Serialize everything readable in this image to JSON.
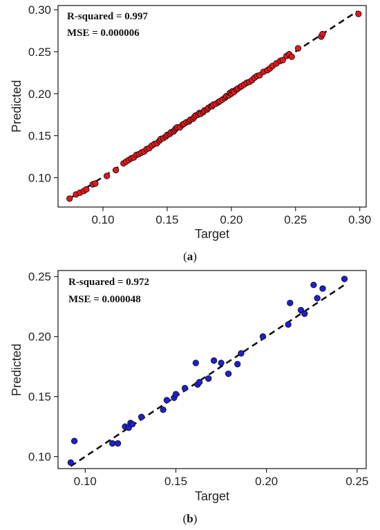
{
  "chart_data": [
    {
      "type": "scatter",
      "caption_open": "(",
      "caption_letter": "a",
      "caption_close": ")",
      "annotations": [
        "R-squared = 0.997",
        "MSE = 0.000006"
      ],
      "xlabel": "Target",
      "ylabel": "Predicted",
      "xlim": [
        0.065,
        0.305
      ],
      "ylim": [
        0.065,
        0.305
      ],
      "xticks": [
        "0.10",
        "0.15",
        "0.20",
        "0.25",
        "0.30"
      ],
      "xtick_values": [
        0.1,
        0.15,
        0.2,
        0.25,
        0.3
      ],
      "yticks": [
        "0.10",
        "0.15",
        "0.20",
        "0.25",
        "0.30"
      ],
      "ytick_values": [
        0.1,
        0.15,
        0.2,
        0.25,
        0.3
      ],
      "fit_line": [
        [
          0.074,
          0.075
        ],
        [
          0.298,
          0.298
        ]
      ],
      "marker_color": "#e8161b",
      "points": [
        [
          0.074,
          0.075
        ],
        [
          0.079,
          0.08
        ],
        [
          0.082,
          0.082
        ],
        [
          0.085,
          0.084
        ],
        [
          0.087,
          0.086
        ],
        [
          0.092,
          0.092
        ],
        [
          0.094,
          0.093
        ],
        [
          0.103,
          0.102
        ],
        [
          0.11,
          0.109
        ],
        [
          0.116,
          0.117
        ],
        [
          0.118,
          0.119
        ],
        [
          0.12,
          0.121
        ],
        [
          0.122,
          0.123
        ],
        [
          0.124,
          0.124
        ],
        [
          0.126,
          0.127
        ],
        [
          0.128,
          0.128
        ],
        [
          0.13,
          0.13
        ],
        [
          0.132,
          0.131
        ],
        [
          0.134,
          0.134
        ],
        [
          0.136,
          0.135
        ],
        [
          0.138,
          0.138
        ],
        [
          0.14,
          0.14
        ],
        [
          0.142,
          0.141
        ],
        [
          0.144,
          0.144
        ],
        [
          0.145,
          0.146
        ],
        [
          0.147,
          0.147
        ],
        [
          0.149,
          0.149
        ],
        [
          0.15,
          0.151
        ],
        [
          0.152,
          0.152
        ],
        [
          0.153,
          0.154
        ],
        [
          0.155,
          0.155
        ],
        [
          0.156,
          0.157
        ],
        [
          0.157,
          0.159
        ],
        [
          0.158,
          0.16
        ],
        [
          0.16,
          0.16
        ],
        [
          0.162,
          0.163
        ],
        [
          0.163,
          0.164
        ],
        [
          0.165,
          0.166
        ],
        [
          0.167,
          0.167
        ],
        [
          0.168,
          0.169
        ],
        [
          0.17,
          0.17
        ],
        [
          0.171,
          0.172
        ],
        [
          0.172,
          0.174
        ],
        [
          0.174,
          0.175
        ],
        [
          0.175,
          0.177
        ],
        [
          0.176,
          0.176
        ],
        [
          0.178,
          0.178
        ],
        [
          0.179,
          0.18
        ],
        [
          0.181,
          0.181
        ],
        [
          0.182,
          0.183
        ],
        [
          0.184,
          0.185
        ],
        [
          0.185,
          0.185
        ],
        [
          0.186,
          0.187
        ],
        [
          0.188,
          0.188
        ],
        [
          0.19,
          0.19
        ],
        [
          0.191,
          0.191
        ],
        [
          0.193,
          0.193
        ],
        [
          0.195,
          0.195
        ],
        [
          0.196,
          0.197
        ],
        [
          0.198,
          0.198
        ],
        [
          0.199,
          0.201
        ],
        [
          0.2,
          0.2
        ],
        [
          0.201,
          0.203
        ],
        [
          0.202,
          0.202
        ],
        [
          0.204,
          0.205
        ],
        [
          0.205,
          0.206
        ],
        [
          0.207,
          0.208
        ],
        [
          0.208,
          0.209
        ],
        [
          0.21,
          0.211
        ],
        [
          0.212,
          0.213
        ],
        [
          0.214,
          0.214
        ],
        [
          0.216,
          0.216
        ],
        [
          0.218,
          0.219
        ],
        [
          0.22,
          0.221
        ],
        [
          0.222,
          0.222
        ],
        [
          0.225,
          0.226
        ],
        [
          0.228,
          0.228
        ],
        [
          0.23,
          0.23
        ],
        [
          0.232,
          0.233
        ],
        [
          0.235,
          0.236
        ],
        [
          0.238,
          0.239
        ],
        [
          0.24,
          0.24
        ],
        [
          0.243,
          0.245
        ],
        [
          0.245,
          0.247
        ],
        [
          0.247,
          0.244
        ],
        [
          0.252,
          0.254
        ],
        [
          0.27,
          0.268
        ],
        [
          0.271,
          0.271
        ],
        [
          0.299,
          0.295
        ]
      ]
    },
    {
      "type": "scatter",
      "caption_open": "(",
      "caption_letter": "b",
      "caption_close": ")",
      "annotations": [
        "R-squared = 0.972",
        "MSE = 0.000048"
      ],
      "xlabel": "Target",
      "ylabel": "Predicted",
      "xlim": [
        0.085,
        0.255
      ],
      "ylim": [
        0.09,
        0.255
      ],
      "xticks": [
        "0.10",
        "0.15",
        "0.20",
        "0.25"
      ],
      "xtick_values": [
        0.1,
        0.15,
        0.2,
        0.25
      ],
      "yticks": [
        "0.10",
        "0.15",
        "0.20",
        "0.25"
      ],
      "ytick_values": [
        0.1,
        0.15,
        0.2,
        0.25
      ],
      "fit_line": [
        [
          0.092,
          0.092
        ],
        [
          0.243,
          0.243
        ]
      ],
      "marker_color": "#1f1fd6",
      "points": [
        [
          0.092,
          0.095
        ],
        [
          0.094,
          0.113
        ],
        [
          0.115,
          0.111
        ],
        [
          0.118,
          0.111
        ],
        [
          0.122,
          0.125
        ],
        [
          0.124,
          0.124
        ],
        [
          0.125,
          0.128
        ],
        [
          0.126,
          0.127
        ],
        [
          0.131,
          0.133
        ],
        [
          0.143,
          0.139
        ],
        [
          0.145,
          0.147
        ],
        [
          0.149,
          0.149
        ],
        [
          0.15,
          0.152
        ],
        [
          0.155,
          0.157
        ],
        [
          0.161,
          0.178
        ],
        [
          0.162,
          0.16
        ],
        [
          0.163,
          0.162
        ],
        [
          0.168,
          0.165
        ],
        [
          0.171,
          0.18
        ],
        [
          0.175,
          0.178
        ],
        [
          0.179,
          0.169
        ],
        [
          0.184,
          0.177
        ],
        [
          0.186,
          0.186
        ],
        [
          0.198,
          0.2
        ],
        [
          0.212,
          0.21
        ],
        [
          0.213,
          0.228
        ],
        [
          0.219,
          0.222
        ],
        [
          0.221,
          0.219
        ],
        [
          0.226,
          0.243
        ],
        [
          0.228,
          0.232
        ],
        [
          0.231,
          0.24
        ],
        [
          0.243,
          0.248
        ]
      ]
    }
  ]
}
